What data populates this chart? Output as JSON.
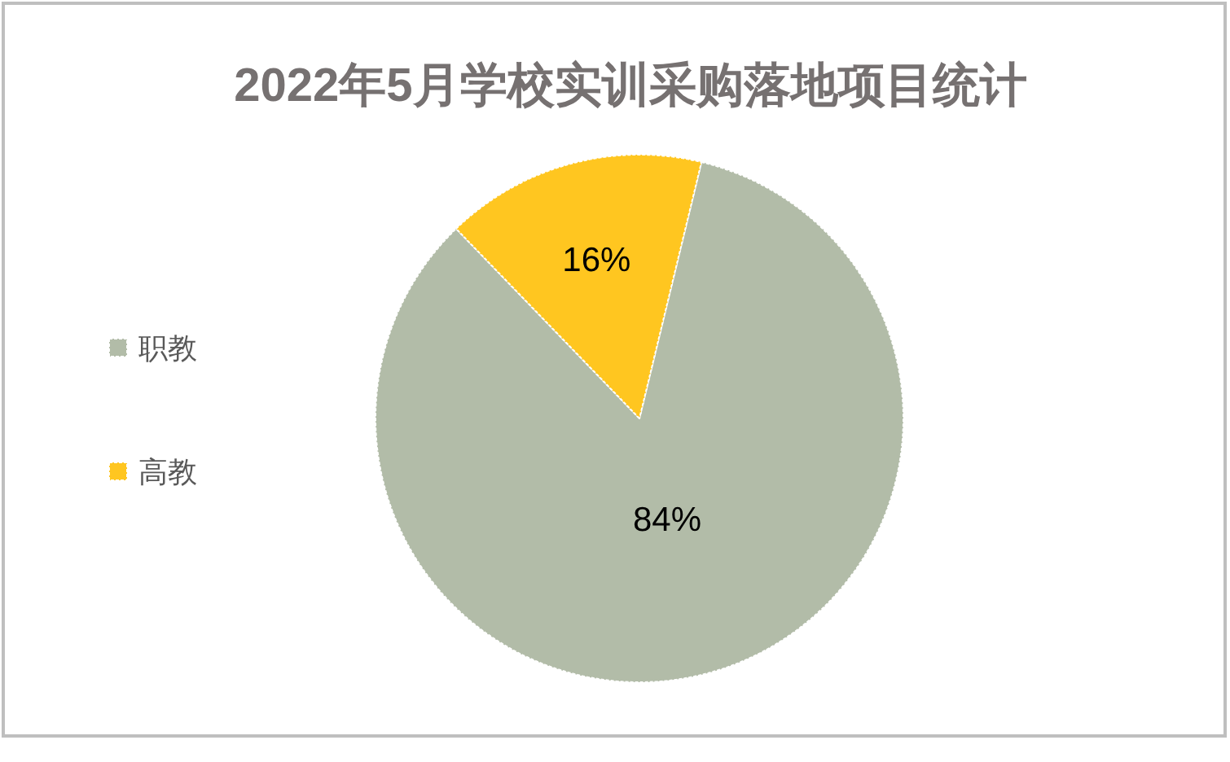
{
  "chart_data": {
    "type": "pie",
    "title": "2022年5月学校实训采购落地项目统计",
    "categories": [
      "职教",
      "高教"
    ],
    "values": [
      84,
      16
    ],
    "colors": [
      "#b2bca8",
      "#ffc620"
    ],
    "value_labels": [
      "84%",
      "16%"
    ],
    "legend": "left"
  }
}
